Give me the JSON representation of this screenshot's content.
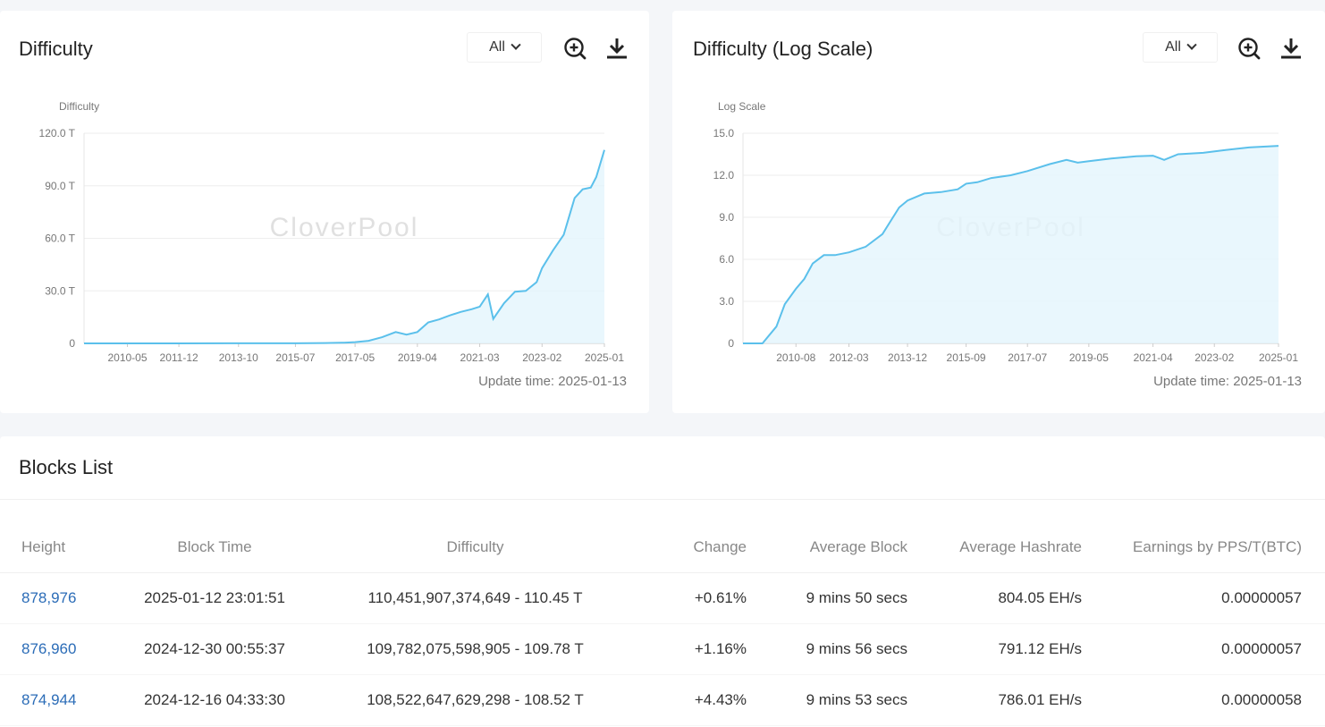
{
  "difficulty_card": {
    "title": "Difficulty",
    "range_label": "All",
    "update_time": "Update time: 2025-01-13",
    "watermark": "CloverPool",
    "icons": {
      "zoom": "zoom-in-icon",
      "download": "download-icon"
    }
  },
  "log_card": {
    "title": "Difficulty (Log Scale)",
    "range_label": "All",
    "update_time": "Update time: 2025-01-13",
    "watermark": "CloverPool",
    "icons": {
      "zoom": "zoom-in-icon",
      "download": "download-icon"
    }
  },
  "colors": {
    "line": "#5bc0eb",
    "area": "#e3f5fc",
    "link": "#2b6cb7",
    "positive": "#3ba55c"
  },
  "chart_data": [
    {
      "type": "area",
      "ylabel": "Difficulty",
      "ylim": [
        0,
        120
      ],
      "y_ticks": [
        "0",
        "30.0 T",
        "60.0 T",
        "90.0 T",
        "120.0 T"
      ],
      "x_ticks": [
        "2010-05",
        "2011-12",
        "2013-10",
        "2015-07",
        "2017-05",
        "2019-04",
        "2021-03",
        "2023-02",
        "2025-01"
      ],
      "grid": true,
      "x": [
        "2009-01",
        "2010-05",
        "2011-12",
        "2013-10",
        "2015-07",
        "2016-06",
        "2017-01",
        "2017-05",
        "2017-10",
        "2018-03",
        "2018-08",
        "2018-12",
        "2019-04",
        "2019-08",
        "2019-12",
        "2020-04",
        "2020-08",
        "2020-12",
        "2021-03",
        "2021-06",
        "2021-08",
        "2021-12",
        "2022-04",
        "2022-08",
        "2022-12",
        "2023-02",
        "2023-06",
        "2023-10",
        "2024-02",
        "2024-05",
        "2024-08",
        "2024-10",
        "2025-01"
      ],
      "values": [
        0,
        0,
        0,
        0.03,
        0.06,
        0.2,
        0.4,
        0.7,
        1.5,
        3.5,
        6.5,
        5.0,
        6.5,
        12.0,
        13.7,
        16.0,
        18.0,
        19.5,
        21.0,
        28.0,
        14.0,
        23.0,
        29.5,
        30.0,
        35.0,
        43.0,
        53.0,
        62.0,
        83.0,
        88.0,
        89.0,
        95.0,
        110.45
      ]
    },
    {
      "type": "area",
      "ylabel": "Log Scale",
      "ylim": [
        0,
        15
      ],
      "y_ticks": [
        "0",
        "3.0",
        "6.0",
        "9.0",
        "12.0",
        "15.0"
      ],
      "x_ticks": [
        "2010-08",
        "2012-03",
        "2013-12",
        "2015-09",
        "2017-07",
        "2019-05",
        "2021-04",
        "2023-02",
        "2025-01"
      ],
      "grid": true,
      "x": [
        "2009-01",
        "2009-08",
        "2010-01",
        "2010-04",
        "2010-08",
        "2010-11",
        "2011-02",
        "2011-06",
        "2011-10",
        "2012-03",
        "2012-09",
        "2013-03",
        "2013-09",
        "2013-12",
        "2014-06",
        "2014-12",
        "2015-06",
        "2015-09",
        "2016-01",
        "2016-06",
        "2017-01",
        "2017-07",
        "2018-03",
        "2018-09",
        "2019-01",
        "2019-05",
        "2020-01",
        "2020-10",
        "2021-04",
        "2021-08",
        "2022-01",
        "2022-10",
        "2023-06",
        "2024-03",
        "2025-01"
      ],
      "values": [
        0,
        0,
        1.2,
        2.8,
        3.9,
        4.6,
        5.7,
        6.3,
        6.3,
        6.5,
        6.9,
        7.8,
        9.7,
        10.2,
        10.7,
        10.8,
        11.0,
        11.4,
        11.5,
        11.8,
        12.0,
        12.3,
        12.8,
        13.1,
        12.9,
        13.0,
        13.2,
        13.35,
        13.4,
        13.1,
        13.5,
        13.6,
        13.8,
        14.0,
        14.1
      ]
    }
  ],
  "blocks": {
    "title": "Blocks List",
    "columns": [
      "Height",
      "Block Time",
      "Difficulty",
      "Change",
      "Average Block",
      "Average Hashrate",
      "Earnings by PPS/T(BTC)"
    ],
    "rows": [
      {
        "height": "878,976",
        "time": "2025-01-12 23:01:51",
        "difficulty": "110,451,907,374,649 - 110.45 T",
        "change": "+0.61%",
        "avg_block": "9 mins 50 secs",
        "hashrate": "804.05 EH/s",
        "earnings": "0.00000057"
      },
      {
        "height": "876,960",
        "time": "2024-12-30 00:55:37",
        "difficulty": "109,782,075,598,905 - 109.78 T",
        "change": "+1.16%",
        "avg_block": "9 mins 56 secs",
        "hashrate": "791.12 EH/s",
        "earnings": "0.00000057"
      },
      {
        "height": "874,944",
        "time": "2024-12-16 04:33:30",
        "difficulty": "108,522,647,629,298 - 108.52 T",
        "change": "+4.43%",
        "avg_block": "9 mins 53 secs",
        "hashrate": "786.01 EH/s",
        "earnings": "0.00000058"
      }
    ]
  }
}
